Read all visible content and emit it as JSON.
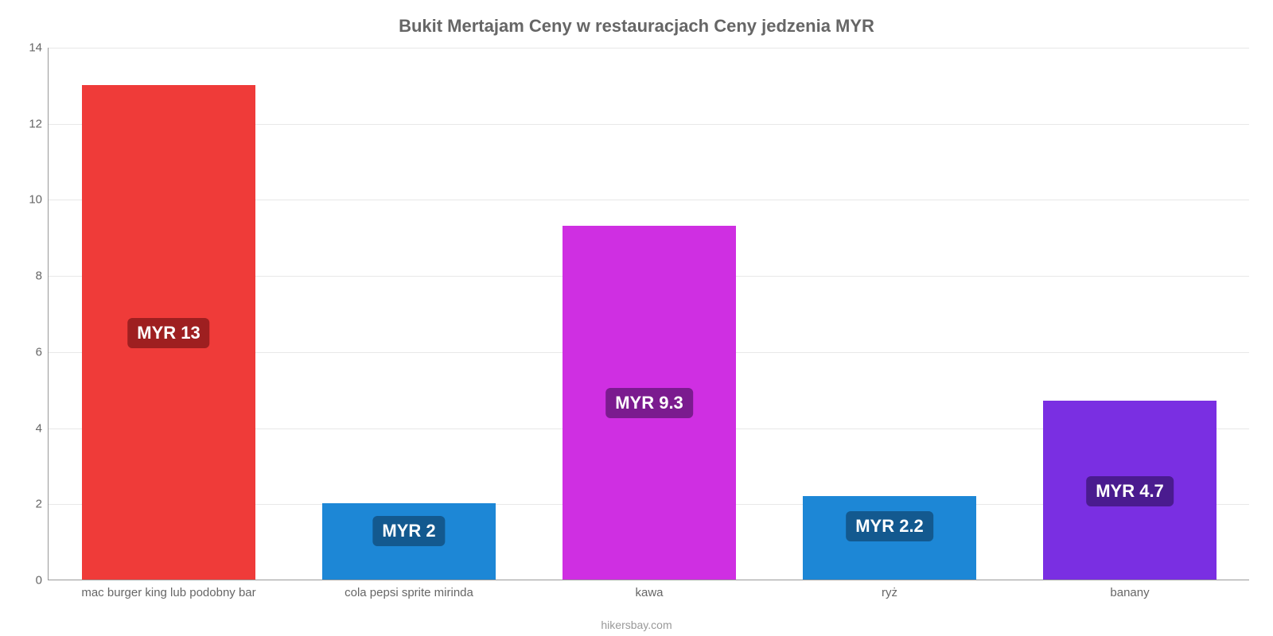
{
  "chart": {
    "type": "bar",
    "title": "Bukit Mertajam Ceny w restauracjach Ceny jedzenia MYR",
    "title_fontsize": 22,
    "title_color": "#666666",
    "background_color": "#ffffff",
    "grid_color": "#e8e8e8",
    "axis_color": "#999999",
    "tick_label_color": "#666666",
    "tick_fontsize": 15,
    "ylim": [
      0,
      14
    ],
    "ytick_step": 2,
    "yticks": [
      0,
      2,
      4,
      6,
      8,
      10,
      12,
      14
    ],
    "categories": [
      "mac burger king lub podobny bar",
      "cola pepsi sprite mirinda",
      "kawa",
      "ryż",
      "banany"
    ],
    "values": [
      13,
      2,
      9.3,
      2.2,
      4.7
    ],
    "value_labels": [
      "MYR 13",
      "MYR 2",
      "MYR 9.3",
      "MYR 2.2",
      "MYR 4.7"
    ],
    "bar_colors": [
      "#ef3b39",
      "#1d87d6",
      "#cf2fe2",
      "#1d87d6",
      "#7a2fe2"
    ],
    "badge_bg_colors": [
      "#9e1f20",
      "#13598f",
      "#7b1b8f",
      "#13598f",
      "#4a1b8f"
    ],
    "badge_text_color": "#ffffff",
    "badge_fontsize": 22,
    "bar_width_ratio": 0.72,
    "attribution": "hikersbay.com",
    "attribution_color": "#999999",
    "attribution_fontsize": 14
  }
}
